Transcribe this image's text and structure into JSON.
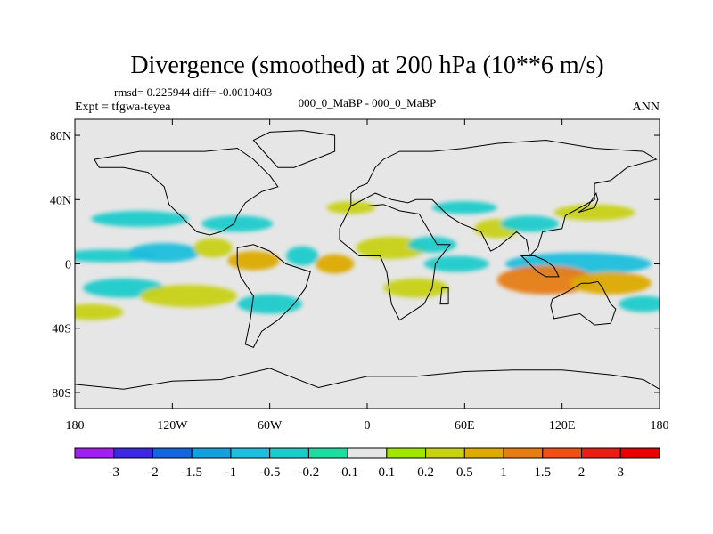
{
  "chart_data": {
    "type": "heatmap",
    "title": "Divergence (smoothed) at 200 hPa (10**6 m/s)",
    "stats_line": "rmsd= 0.225944 diff= -0.0010403",
    "case_label": "000_0_MaBP - 000_0_MaBP",
    "expt_label": "Expt = tfgwa-teyea",
    "season": "ANN",
    "x_ticks": [
      {
        "value": -180,
        "label": "180"
      },
      {
        "value": -120,
        "label": "120W"
      },
      {
        "value": -60,
        "label": "60W"
      },
      {
        "value": 0,
        "label": "0"
      },
      {
        "value": 60,
        "label": "60E"
      },
      {
        "value": 120,
        "label": "120E"
      },
      {
        "value": 180,
        "label": "180"
      }
    ],
    "y_ticks": [
      {
        "value": 80,
        "label": "80N"
      },
      {
        "value": 40,
        "label": "40N"
      },
      {
        "value": 0,
        "label": "0"
      },
      {
        "value": -40,
        "label": "40S"
      },
      {
        "value": -80,
        "label": "80S"
      }
    ],
    "xlim": [
      -180,
      180
    ],
    "ylim": [
      -90,
      90
    ],
    "colorbar": {
      "levels": [
        "-3",
        "-2",
        "-1.5",
        "-1",
        "-0.5",
        "-0.2",
        "-0.1",
        "0.1",
        "0.2",
        "0.5",
        "1",
        "1.5",
        "2",
        "3"
      ],
      "colors": [
        "#a020f0",
        "#3c28e0",
        "#1466dc",
        "#14a0dc",
        "#1ebedc",
        "#1ecbcb",
        "#1edca0",
        "#e6e6e6",
        "#a0e600",
        "#c8d214",
        "#dcaa00",
        "#e67d14",
        "#f05014",
        "#e61e14",
        "#e60000"
      ]
    },
    "blobs": [
      {
        "lon": -160,
        "lat": 5,
        "rx": 30,
        "ry": 4,
        "v": -0.3
      },
      {
        "lon": -125,
        "lat": 7,
        "rx": 22,
        "ry": 6,
        "v": -0.6
      },
      {
        "lon": -95,
        "lat": 10,
        "rx": 12,
        "ry": 6,
        "v": 0.4
      },
      {
        "lon": -70,
        "lat": 2,
        "rx": 16,
        "ry": 6,
        "v": 0.6
      },
      {
        "lon": -40,
        "lat": 5,
        "rx": 10,
        "ry": 6,
        "v": -0.5
      },
      {
        "lon": -20,
        "lat": 0,
        "rx": 12,
        "ry": 6,
        "v": 0.7
      },
      {
        "lon": 15,
        "lat": 10,
        "rx": 22,
        "ry": 7,
        "v": 0.4
      },
      {
        "lon": 40,
        "lat": 12,
        "rx": 15,
        "ry": 5,
        "v": -0.3
      },
      {
        "lon": 55,
        "lat": 0,
        "rx": 20,
        "ry": 5,
        "v": -0.4
      },
      {
        "lon": 130,
        "lat": 0,
        "rx": 45,
        "ry": 7,
        "v": -0.7
      },
      {
        "lon": 110,
        "lat": -10,
        "rx": 30,
        "ry": 9,
        "v": 1.1
      },
      {
        "lon": 150,
        "lat": -12,
        "rx": 25,
        "ry": 7,
        "v": 0.5
      },
      {
        "lon": 80,
        "lat": 22,
        "rx": 14,
        "ry": 6,
        "v": 0.4
      },
      {
        "lon": 100,
        "lat": 25,
        "rx": 18,
        "ry": 5,
        "v": -0.3
      },
      {
        "lon": -150,
        "lat": -15,
        "rx": 25,
        "ry": 6,
        "v": -0.5
      },
      {
        "lon": -110,
        "lat": -20,
        "rx": 30,
        "ry": 7,
        "v": 0.35
      },
      {
        "lon": -60,
        "lat": -25,
        "rx": 20,
        "ry": 6,
        "v": -0.3
      },
      {
        "lon": 30,
        "lat": -15,
        "rx": 20,
        "ry": 6,
        "v": 0.35
      },
      {
        "lon": -140,
        "lat": 28,
        "rx": 30,
        "ry": 5,
        "v": -0.35
      },
      {
        "lon": -80,
        "lat": 25,
        "rx": 22,
        "ry": 5,
        "v": -0.4
      },
      {
        "lon": -10,
        "lat": 35,
        "rx": 15,
        "ry": 4,
        "v": 0.3
      },
      {
        "lon": 60,
        "lat": 35,
        "rx": 20,
        "ry": 4,
        "v": -0.25
      },
      {
        "lon": 140,
        "lat": 32,
        "rx": 25,
        "ry": 5,
        "v": 0.35
      },
      {
        "lon": -170,
        "lat": -30,
        "rx": 20,
        "ry": 5,
        "v": 0.3
      },
      {
        "lon": 170,
        "lat": -25,
        "rx": 15,
        "ry": 5,
        "v": -0.25
      }
    ],
    "continents": [
      [
        [
          -168,
          65
        ],
        [
          -140,
          70
        ],
        [
          -120,
          70
        ],
        [
          -100,
          70
        ],
        [
          -80,
          72
        ],
        [
          -70,
          65
        ],
        [
          -60,
          55
        ],
        [
          -55,
          48
        ],
        [
          -65,
          45
        ],
        [
          -75,
          38
        ],
        [
          -80,
          30
        ],
        [
          -82,
          25
        ],
        [
          -90,
          20
        ],
        [
          -97,
          18
        ],
        [
          -105,
          20
        ],
        [
          -115,
          30
        ],
        [
          -122,
          37
        ],
        [
          -125,
          48
        ],
        [
          -135,
          57
        ],
        [
          -150,
          60
        ],
        [
          -165,
          60
        ]
      ],
      [
        [
          -80,
          10
        ],
        [
          -70,
          12
        ],
        [
          -60,
          8
        ],
        [
          -50,
          0
        ],
        [
          -35,
          -5
        ],
        [
          -38,
          -15
        ],
        [
          -45,
          -25
        ],
        [
          -55,
          -35
        ],
        [
          -65,
          -42
        ],
        [
          -70,
          -52
        ],
        [
          -75,
          -50
        ],
        [
          -72,
          -35
        ],
        [
          -70,
          -20
        ],
        [
          -78,
          -8
        ],
        [
          -80,
          0
        ]
      ],
      [
        [
          -10,
          36
        ],
        [
          0,
          36
        ],
        [
          10,
          37
        ],
        [
          20,
          33
        ],
        [
          32,
          31
        ],
        [
          43,
          12
        ],
        [
          51,
          12
        ],
        [
          42,
          0
        ],
        [
          40,
          -15
        ],
        [
          35,
          -25
        ],
        [
          20,
          -35
        ],
        [
          15,
          -25
        ],
        [
          12,
          -5
        ],
        [
          8,
          5
        ],
        [
          -5,
          5
        ],
        [
          -17,
          15
        ],
        [
          -17,
          22
        ]
      ],
      [
        [
          -10,
          36
        ],
        [
          -10,
          44
        ],
        [
          -5,
          48
        ],
        [
          0,
          50
        ],
        [
          5,
          60
        ],
        [
          10,
          65
        ],
        [
          20,
          70
        ],
        [
          40,
          70
        ],
        [
          60,
          72
        ],
        [
          80,
          75
        ],
        [
          110,
          77
        ],
        [
          140,
          72
        ],
        [
          170,
          70
        ],
        [
          178,
          65
        ],
        [
          160,
          60
        ],
        [
          150,
          52
        ],
        [
          140,
          50
        ],
        [
          140,
          40
        ],
        [
          122,
          30
        ],
        [
          120,
          22
        ],
        [
          108,
          20
        ],
        [
          105,
          10
        ],
        [
          100,
          5
        ],
        [
          98,
          15
        ],
        [
          92,
          20
        ],
        [
          80,
          10
        ],
        [
          76,
          8
        ],
        [
          70,
          20
        ],
        [
          58,
          25
        ],
        [
          50,
          30
        ],
        [
          40,
          40
        ],
        [
          30,
          40
        ],
        [
          25,
          38
        ],
        [
          15,
          40
        ],
        [
          5,
          44
        ]
      ],
      [
        [
          114,
          -22
        ],
        [
          122,
          -18
        ],
        [
          132,
          -12
        ],
        [
          137,
          -12
        ],
        [
          142,
          -11
        ],
        [
          145,
          -15
        ],
        [
          150,
          -25
        ],
        [
          153,
          -28
        ],
        [
          150,
          -37
        ],
        [
          140,
          -38
        ],
        [
          131,
          -31
        ],
        [
          115,
          -34
        ],
        [
          113,
          -26
        ]
      ],
      [
        [
          -55,
          60
        ],
        [
          -45,
          60
        ],
        [
          -20,
          70
        ],
        [
          -20,
          80
        ],
        [
          -40,
          83
        ],
        [
          -60,
          82
        ],
        [
          -70,
          77
        ]
      ],
      [
        [
          -180,
          -75
        ],
        [
          -150,
          -78
        ],
        [
          -120,
          -73
        ],
        [
          -90,
          -72
        ],
        [
          -60,
          -65
        ],
        [
          -30,
          -77
        ],
        [
          0,
          -70
        ],
        [
          30,
          -70
        ],
        [
          60,
          -67
        ],
        [
          90,
          -66
        ],
        [
          120,
          -66
        ],
        [
          150,
          -69
        ],
        [
          170,
          -72
        ],
        [
          180,
          -78
        ],
        [
          180,
          -90
        ],
        [
          -180,
          -90
        ]
      ],
      [
        [
          95,
          5
        ],
        [
          100,
          0
        ],
        [
          105,
          -5
        ],
        [
          110,
          -8
        ],
        [
          118,
          -8
        ],
        [
          115,
          -2
        ],
        [
          110,
          2
        ],
        [
          103,
          5
        ]
      ],
      [
        [
          46,
          -15
        ],
        [
          50,
          -15
        ],
        [
          50,
          -25
        ],
        [
          45,
          -25
        ]
      ],
      [
        [
          130,
          32
        ],
        [
          140,
          35
        ],
        [
          142,
          40
        ],
        [
          141,
          44
        ],
        [
          136,
          36
        ]
      ]
    ]
  }
}
